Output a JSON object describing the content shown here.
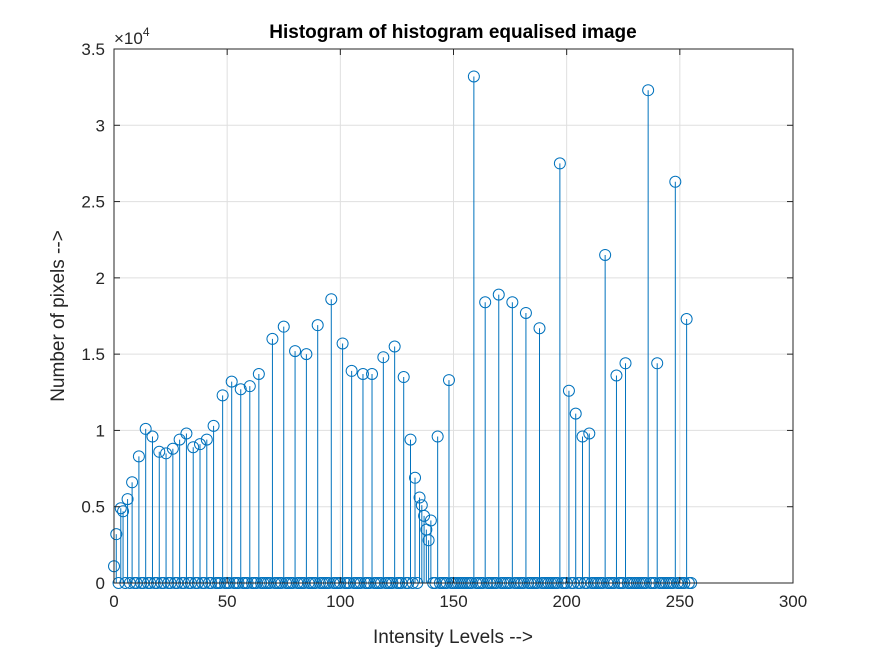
{
  "chart_data": {
    "type": "stem",
    "title": "Histogram of histogram equalised image",
    "xlabel": "Intensity Levels -->",
    "ylabel": "Number of pixels  -->",
    "xlim": [
      0,
      300
    ],
    "ylim": [
      0,
      35000
    ],
    "xticks": [
      0,
      50,
      100,
      150,
      200,
      250,
      300
    ],
    "xtick_labels": [
      "0",
      "50",
      "100",
      "150",
      "200",
      "250",
      "300"
    ],
    "yticks": [
      0,
      5000,
      10000,
      15000,
      20000,
      25000,
      30000,
      35000
    ],
    "ytick_labels": [
      "0",
      "0.5",
      "1",
      "1.5",
      "2",
      "2.5",
      "3",
      "3.5"
    ],
    "y_exponent_base": "×10",
    "y_exponent_power": "4",
    "grid": true,
    "color": "#0072BD",
    "points": [
      [
        0,
        1100
      ],
      [
        1,
        3200
      ],
      [
        3,
        4900
      ],
      [
        4,
        4700
      ],
      [
        6,
        5500
      ],
      [
        8,
        6600
      ],
      [
        11,
        8300
      ],
      [
        14,
        10100
      ],
      [
        17,
        9600
      ],
      [
        20,
        8600
      ],
      [
        23,
        8500
      ],
      [
        26,
        8800
      ],
      [
        29,
        9400
      ],
      [
        32,
        9800
      ],
      [
        35,
        8900
      ],
      [
        38,
        9100
      ],
      [
        41,
        9400
      ],
      [
        44,
        10300
      ],
      [
        48,
        12300
      ],
      [
        52,
        13200
      ],
      [
        56,
        12700
      ],
      [
        60,
        12900
      ],
      [
        64,
        13700
      ],
      [
        70,
        16000
      ],
      [
        75,
        16800
      ],
      [
        80,
        15200
      ],
      [
        85,
        15000
      ],
      [
        90,
        16900
      ],
      [
        96,
        18600
      ],
      [
        101,
        15700
      ],
      [
        105,
        13900
      ],
      [
        110,
        13700
      ],
      [
        114,
        13700
      ],
      [
        119,
        14800
      ],
      [
        124,
        15500
      ],
      [
        128,
        13500
      ],
      [
        131,
        9400
      ],
      [
        133,
        6900
      ],
      [
        135,
        5600
      ],
      [
        136,
        5100
      ],
      [
        137,
        4400
      ],
      [
        138,
        3500
      ],
      [
        139,
        2800
      ],
      [
        140,
        4100
      ],
      [
        143,
        9600
      ],
      [
        148,
        13300
      ],
      [
        159,
        33200
      ],
      [
        164,
        18400
      ],
      [
        170,
        18900
      ],
      [
        176,
        18400
      ],
      [
        182,
        17700
      ],
      [
        188,
        16700
      ],
      [
        197,
        27500
      ],
      [
        201,
        12600
      ],
      [
        204,
        11100
      ],
      [
        207,
        9600
      ],
      [
        210,
        9800
      ],
      [
        217,
        21500
      ],
      [
        222,
        13600
      ],
      [
        226,
        14400
      ],
      [
        236,
        32300
      ],
      [
        240,
        14400
      ],
      [
        248,
        26300
      ],
      [
        253,
        17300
      ]
    ],
    "zero_x": [
      2,
      5,
      7,
      9,
      10,
      12,
      13,
      15,
      16,
      18,
      19,
      21,
      22,
      24,
      25,
      27,
      28,
      30,
      31,
      33,
      34,
      36,
      37,
      39,
      40,
      42,
      43,
      45,
      46,
      47,
      49,
      50,
      51,
      53,
      54,
      55,
      57,
      58,
      59,
      61,
      62,
      63,
      65,
      66,
      67,
      68,
      69,
      71,
      72,
      73,
      74,
      76,
      77,
      78,
      79,
      81,
      82,
      83,
      84,
      86,
      87,
      88,
      89,
      91,
      92,
      93,
      94,
      95,
      97,
      98,
      99,
      100,
      102,
      103,
      104,
      106,
      107,
      108,
      109,
      111,
      112,
      113,
      115,
      116,
      117,
      118,
      120,
      121,
      122,
      123,
      125,
      126,
      127,
      129,
      130,
      132,
      134,
      141,
      142,
      144,
      145,
      146,
      147,
      149,
      150,
      151,
      152,
      153,
      154,
      155,
      156,
      157,
      158,
      160,
      161,
      162,
      163,
      165,
      166,
      167,
      168,
      169,
      171,
      172,
      173,
      174,
      175,
      177,
      178,
      179,
      180,
      181,
      183,
      184,
      185,
      186,
      187,
      189,
      190,
      191,
      192,
      193,
      194,
      195,
      196,
      198,
      199,
      200,
      202,
      203,
      205,
      206,
      208,
      209,
      211,
      212,
      213,
      214,
      215,
      216,
      218,
      219,
      220,
      221,
      223,
      224,
      225,
      227,
      228,
      229,
      230,
      231,
      232,
      233,
      234,
      235,
      237,
      238,
      239,
      241,
      242,
      243,
      244,
      245,
      246,
      247,
      249,
      250,
      251,
      252,
      254,
      255
    ]
  }
}
